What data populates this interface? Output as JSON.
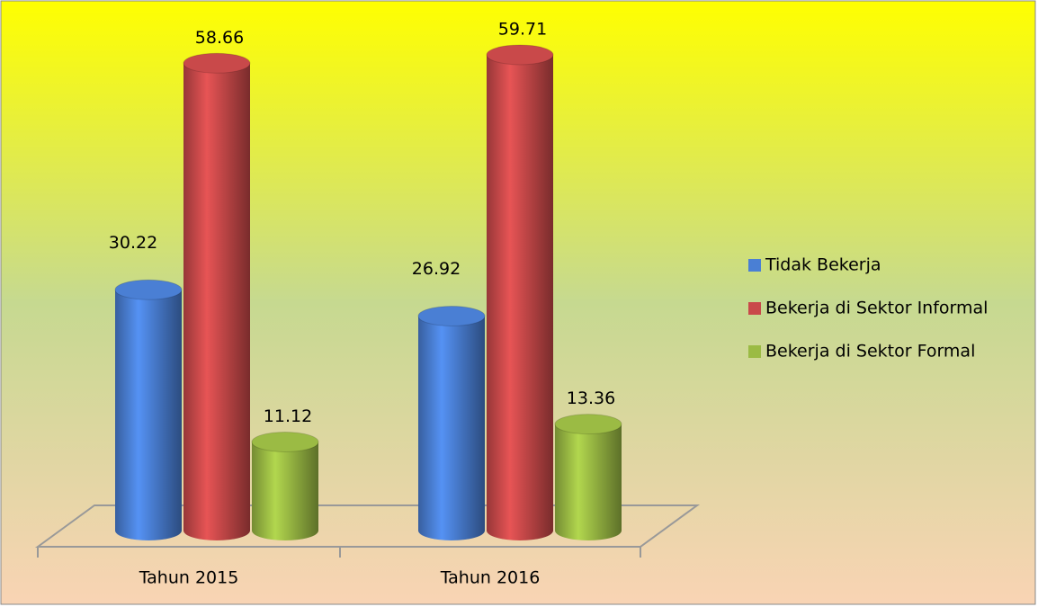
{
  "chart_data": {
    "type": "bar3d",
    "categories": [
      "Tahun 2015",
      "Tahun 2016"
    ],
    "series": [
      {
        "name": "Tidak Bekerja",
        "color": "#4a7fd4",
        "values": [
          30.22,
          26.92
        ]
      },
      {
        "name": "Bekerja di Sektor Informal",
        "color": "#c9494a",
        "values": [
          58.66,
          59.71
        ]
      },
      {
        "name": "Bekerja di Sektor Formal",
        "color": "#9bbb44",
        "values": [
          11.12,
          13.36
        ]
      }
    ],
    "legend": "right"
  }
}
